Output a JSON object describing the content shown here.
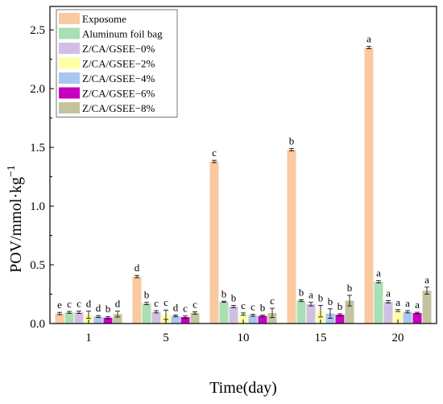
{
  "chart_data": {
    "type": "bar",
    "xlabel": "Time(day)",
    "ylabel": "POV/mmol·kg",
    "ylabel_sup": "−1",
    "ylim": [
      0,
      2.7
    ],
    "yticks": [
      0.0,
      0.5,
      1.0,
      1.5,
      2.0,
      2.5
    ],
    "ytick_labels": [
      "0.0",
      "0.5",
      "1.0",
      "1.5",
      "2.0",
      "2.5"
    ],
    "categories": [
      "1",
      "5",
      "10",
      "15",
      "20"
    ],
    "legend_position": "top-left",
    "series": [
      {
        "name": "Exposome",
        "color": "#FAC9A0",
        "values": [
          0.085,
          0.4,
          1.38,
          1.48,
          2.35
        ],
        "errors": [
          0.01,
          0.01,
          0.01,
          0.01,
          0.01
        ],
        "letters": [
          "e",
          "d",
          "c",
          "b",
          "a"
        ]
      },
      {
        "name": "Aluminum foil bag",
        "color": "#A9DFB3",
        "values": [
          0.095,
          0.17,
          0.185,
          0.195,
          0.355
        ],
        "errors": [
          0.008,
          0.01,
          0.005,
          0.008,
          0.01
        ],
        "letters": [
          "c",
          "b",
          "b",
          "b",
          "a"
        ]
      },
      {
        "name": "Z/CA/GSEE−0%",
        "color": "#CFC0E3",
        "values": [
          0.095,
          0.1,
          0.145,
          0.165,
          0.185
        ],
        "errors": [
          0.01,
          0.01,
          0.01,
          0.015,
          0.01
        ],
        "letters": [
          "c",
          "c",
          "b",
          "a",
          "a"
        ]
      },
      {
        "name": "Z/CA/GSEE−2%",
        "color": "#FFFFA6",
        "values": [
          0.075,
          0.075,
          0.08,
          0.105,
          0.11
        ],
        "errors": [
          0.03,
          0.04,
          0.01,
          0.05,
          0.008
        ],
        "letters": [
          "d",
          "c",
          "c",
          "b",
          "a"
        ]
      },
      {
        "name": "Z/CA/GSEE−4%",
        "color": "#A9C6F0",
        "values": [
          0.06,
          0.065,
          0.07,
          0.085,
          0.1
        ],
        "errors": [
          0.008,
          0.008,
          0.008,
          0.04,
          0.01
        ],
        "letters": [
          "d",
          "d",
          "c",
          "b",
          "a"
        ]
      },
      {
        "name": "Z/CA/GSEE−6%",
        "color": "#C800C0",
        "values": [
          0.05,
          0.055,
          0.065,
          0.075,
          0.09
        ],
        "errors": [
          0.01,
          0.01,
          0.008,
          0.008,
          0.006
        ],
        "letters": [
          "b",
          "c",
          "b",
          "b",
          "a"
        ]
      },
      {
        "name": "Z/CA/GSEE−8%",
        "color": "#C4C3A0",
        "values": [
          0.08,
          0.09,
          0.09,
          0.195,
          0.28
        ],
        "errors": [
          0.025,
          0.01,
          0.04,
          0.045,
          0.03
        ],
        "letters": [
          "d",
          "c",
          "c",
          "b",
          "a"
        ]
      }
    ]
  }
}
